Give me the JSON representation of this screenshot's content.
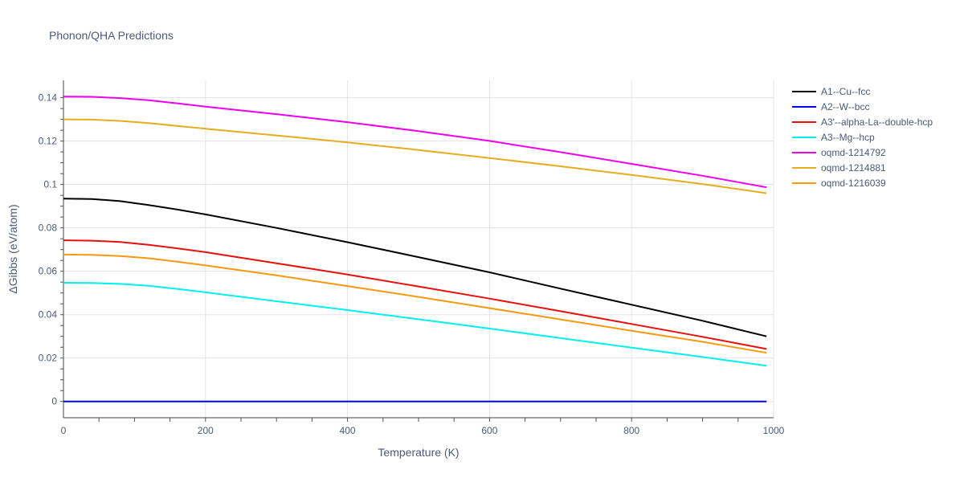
{
  "chart_data": {
    "type": "line",
    "title": "Phonon/QHA Predictions",
    "xlabel": "Temperature (K)",
    "ylabel": "ΔGibbs (eV/atom)",
    "xlim": [
      0,
      1000
    ],
    "ylim": [
      -0.0075,
      0.148
    ],
    "x_ticks": [
      0,
      200,
      400,
      600,
      800,
      1000
    ],
    "x_tick_labels": [
      "0",
      "200",
      "400",
      "600",
      "800",
      "1000"
    ],
    "y_ticks": [
      0,
      0.02,
      0.04,
      0.06,
      0.08,
      0.1,
      0.12,
      0.14
    ],
    "y_tick_labels": [
      "0",
      "0.02",
      "0.04",
      "0.06",
      "0.08",
      "0.1",
      "0.12",
      "0.14"
    ],
    "grid": true,
    "legend_position": "right",
    "x": [
      0,
      40,
      80,
      120,
      160,
      200,
      300,
      400,
      500,
      600,
      700,
      800,
      900,
      990
    ],
    "series": [
      {
        "name": "A1--Cu--fcc",
        "color": "#000000",
        "values": [
          0.0935,
          0.0933,
          0.0923,
          0.0905,
          0.0885,
          0.0862,
          0.08,
          0.0734,
          0.0665,
          0.0595,
          0.052,
          0.0446,
          0.0372,
          0.03
        ]
      },
      {
        "name": "A2--W--bcc",
        "color": "#0000ff",
        "values": [
          0,
          0,
          0,
          0,
          0,
          0,
          0,
          0,
          0,
          0,
          0,
          0,
          0,
          0
        ]
      },
      {
        "name": "A3'--alpha-La--double-hcp",
        "color": "#e8100c",
        "values": [
          0.0743,
          0.0741,
          0.0735,
          0.0722,
          0.0706,
          0.0688,
          0.0637,
          0.0585,
          0.053,
          0.0474,
          0.0416,
          0.0357,
          0.0298,
          0.0242
        ]
      },
      {
        "name": "A3--Mg--hcp",
        "color": "#00f0f0",
        "values": [
          0.0547,
          0.0546,
          0.0542,
          0.0533,
          0.0519,
          0.0503,
          0.0462,
          0.0421,
          0.0379,
          0.0336,
          0.0292,
          0.0248,
          0.0205,
          0.0165
        ]
      },
      {
        "name": "oqmd-1214792",
        "color": "#ee00ee",
        "values": [
          0.1405,
          0.1404,
          0.1398,
          0.1388,
          0.1374,
          0.1359,
          0.1324,
          0.1287,
          0.1246,
          0.1201,
          0.1149,
          0.1095,
          0.104,
          0.0987
        ]
      },
      {
        "name": "oqmd-1214881",
        "color": "#e5ad1f",
        "values": [
          0.13,
          0.1299,
          0.1293,
          0.1283,
          0.127,
          0.1257,
          0.1226,
          0.1194,
          0.1159,
          0.1122,
          0.1084,
          0.1044,
          0.1002,
          0.096
        ]
      },
      {
        "name": "oqmd-1216039",
        "color": "#f59a0f",
        "values": [
          0.0677,
          0.0676,
          0.067,
          0.066,
          0.0644,
          0.0627,
          0.0581,
          0.0532,
          0.0482,
          0.043,
          0.0378,
          0.0326,
          0.0275,
          0.0224
        ]
      }
    ]
  }
}
